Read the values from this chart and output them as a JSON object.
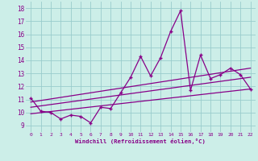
{
  "xlabel": "Windchill (Refroidissement éolien,°C)",
  "bg_color": "#cceee8",
  "line_color": "#880088",
  "grid_color": "#99cccc",
  "xlim": [
    -0.5,
    22.5
  ],
  "ylim": [
    8.5,
    18.5
  ],
  "xticks": [
    0,
    1,
    2,
    3,
    4,
    5,
    6,
    7,
    8,
    9,
    10,
    11,
    12,
    13,
    14,
    15,
    16,
    17,
    18,
    19,
    20,
    21,
    22
  ],
  "yticks": [
    9,
    10,
    11,
    12,
    13,
    14,
    15,
    16,
    17,
    18
  ],
  "line1_x": [
    0,
    1,
    2,
    3,
    4,
    5,
    6,
    7,
    8,
    9,
    10,
    11,
    12,
    13,
    14,
    15,
    16,
    17,
    18,
    19,
    20,
    21,
    22
  ],
  "line1_y": [
    11.1,
    10.1,
    10.0,
    9.5,
    9.8,
    9.7,
    9.2,
    10.4,
    10.3,
    11.5,
    12.7,
    14.3,
    12.8,
    14.2,
    16.2,
    17.8,
    11.7,
    14.4,
    12.6,
    12.9,
    13.4,
    12.9,
    11.8
  ],
  "line2_x": [
    0,
    22
  ],
  "line2_y": [
    10.8,
    13.4
  ],
  "line3_x": [
    0,
    22
  ],
  "line3_y": [
    10.4,
    12.7
  ],
  "line4_x": [
    0,
    22
  ],
  "line4_y": [
    9.9,
    11.8
  ]
}
